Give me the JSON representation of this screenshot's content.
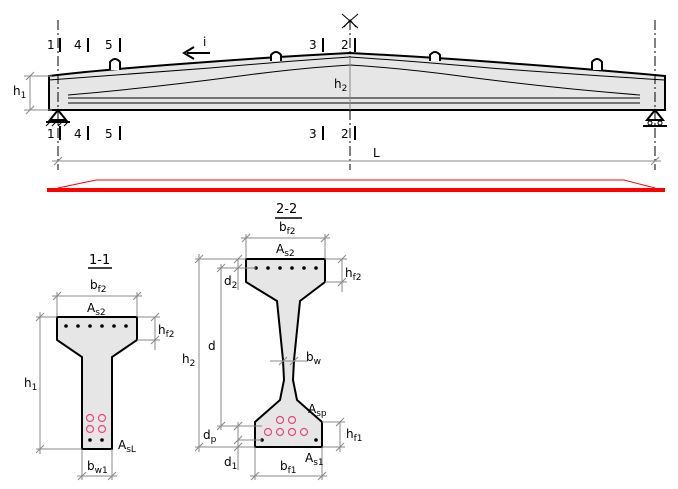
{
  "beam": {
    "section_marks": [
      "1",
      "4",
      "5",
      "3",
      "2"
    ],
    "slope_label": "i",
    "h1_main": "h",
    "h1_main_sub": "1",
    "h2_main": "h",
    "h2_main_sub": "2",
    "span_label": "L"
  },
  "section_1_1": {
    "title": "1-1",
    "bf2": "b",
    "bf2_sub": "f2",
    "As2": "A",
    "As2_sub": "s2",
    "hf2": "h",
    "hf2_sub": "f2",
    "h1": "h",
    "h1_sub": "1",
    "AsL": "A",
    "AsL_sub": "sL",
    "bw1": "b",
    "bw1_sub": "w1"
  },
  "section_2_2": {
    "title": "2-2",
    "bf2": "b",
    "bf2_sub": "f2",
    "As2": "A",
    "As2_sub": "s2",
    "hf2": "h",
    "hf2_sub": "f2",
    "d2": "d",
    "d2_sub": "2",
    "d": "d",
    "h2": "h",
    "h2_sub": "2",
    "bw": "b",
    "bw_sub": "w",
    "Asp": "A",
    "Asp_sub": "sp",
    "dp": "d",
    "dp_sub": "p",
    "hf1": "h",
    "hf1_sub": "f1",
    "d1": "d",
    "d1_sub": "1",
    "bf1": "b",
    "bf1_sub": "f1",
    "As1": "A",
    "As1_sub": "s1"
  },
  "colors": {
    "concrete": "#e6e6e6",
    "prestress_strand": "#e8487a",
    "load_line": "#ff0000",
    "dimension": "#888888"
  }
}
